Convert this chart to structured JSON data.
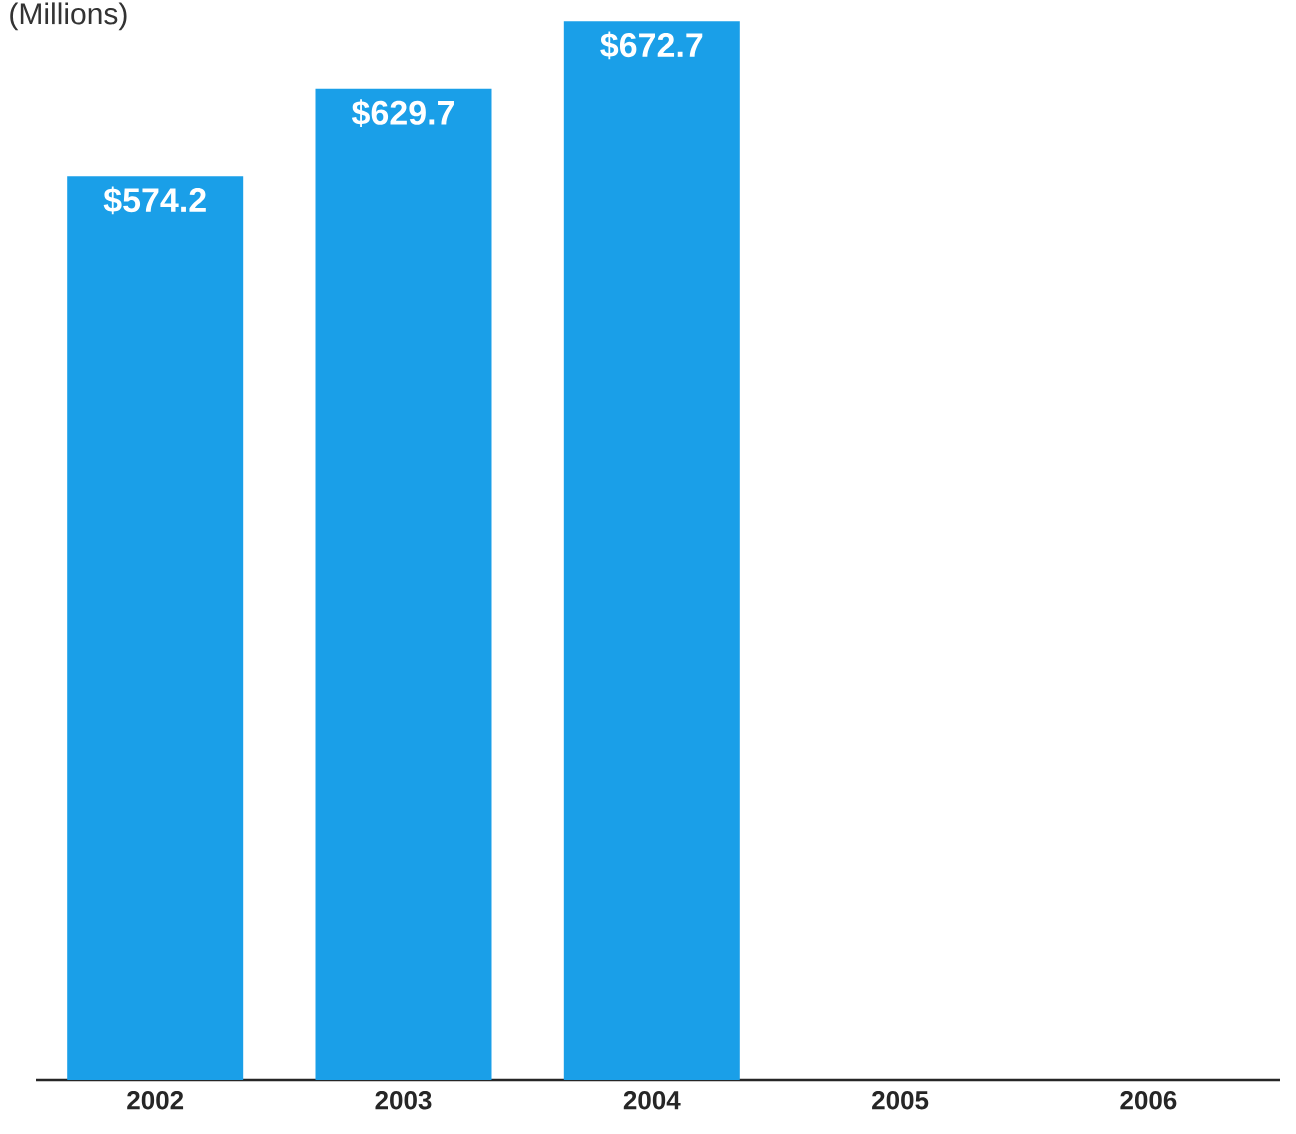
{
  "chart_data": {
    "type": "bar",
    "subtitle": "(Millions)",
    "categories": [
      "2002",
      "2003",
      "2004",
      "2005",
      "2006"
    ],
    "values": [
      574.2,
      629.7,
      672.7,
      null,
      null
    ],
    "value_labels": [
      "$574.2",
      "$629.7",
      "$672.7",
      null,
      null
    ],
    "color": "#1a9fe8",
    "tick_labels": "x"
  }
}
